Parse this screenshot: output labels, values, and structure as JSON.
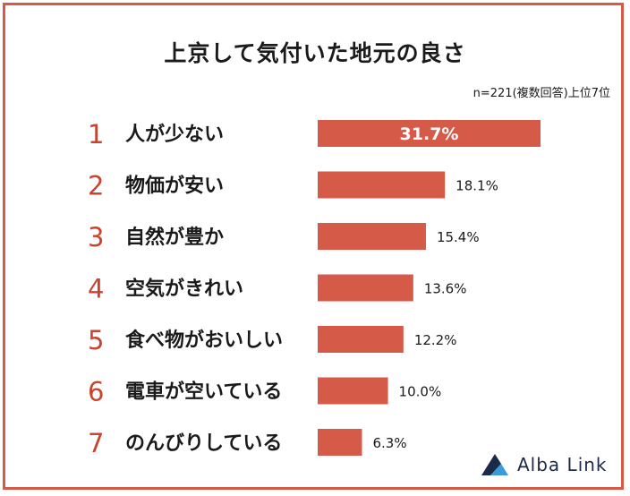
{
  "header": {
    "title": "上京して気付いた地元の良さ",
    "note": "n=221(複数回答)上位7位"
  },
  "brand": {
    "name": "Alba Link",
    "icon": "alba-link-logo-icon",
    "colors": {
      "dark": "#1c2a4a",
      "light": "#3a9bd9"
    }
  },
  "colors": {
    "bar": "#d65a48",
    "rank": "#c9442f",
    "frame": "#d65a48"
  },
  "chart_data": {
    "type": "bar",
    "orientation": "horizontal",
    "title": "上京して気付いた地元の良さ",
    "ranks": [
      "1",
      "2",
      "3",
      "4",
      "5",
      "6",
      "7"
    ],
    "categories": [
      "人が少ない",
      "物価が安い",
      "自然が豊か",
      "空気がきれい",
      "食べ物がおいしい",
      "電車が空いている",
      "のんびりしている"
    ],
    "values": [
      31.7,
      18.1,
      15.4,
      13.6,
      12.2,
      10.0,
      6.3
    ],
    "value_labels": [
      "31.7%",
      "18.1%",
      "15.4%",
      "13.6%",
      "12.2%",
      "10.0%",
      "6.3%"
    ],
    "unit": "%",
    "grid": false,
    "legend": "none"
  }
}
